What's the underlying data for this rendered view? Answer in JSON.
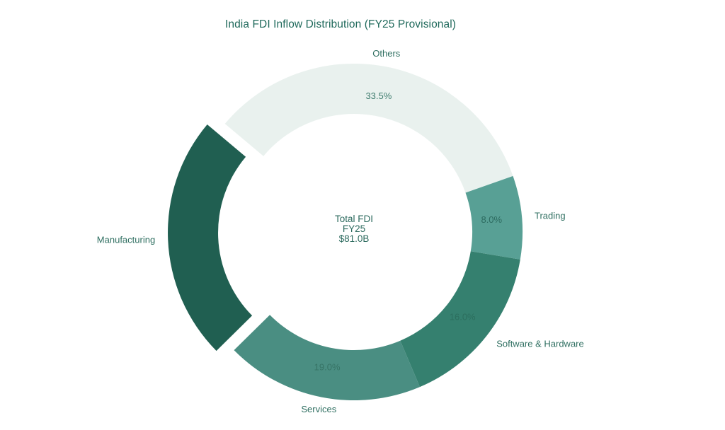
{
  "title": "India FDI Inflow Distribution (FY25 Provisional)",
  "center_label": {
    "line1": "Total FDI",
    "line2": "FY25",
    "line3": "$81.0B"
  },
  "colors": {
    "background": "#ffffff",
    "title_text": "#1f695b",
    "label_text": "#2f6f61",
    "center_text": "#2c6a5e"
  },
  "chart_data": {
    "type": "pie",
    "subtype": "donut",
    "title": "India FDI Inflow Distribution (FY25 Provisional)",
    "donut_hole_ratio": 0.7,
    "rotation_deg": -50,
    "direction": "clockwise",
    "legend_position": "none",
    "center_text_lines": [
      "Total FDI",
      "FY25",
      "$81.0B"
    ],
    "slices": [
      {
        "label": "Others",
        "pct": 33.5,
        "pct_label": "33.5%",
        "color": "#e9f1ee",
        "pct_text_color": "#3f7c6e",
        "pulled": false
      },
      {
        "label": "Trading",
        "pct": 8.0,
        "pct_label": "8.0%",
        "color": "#58a095",
        "pct_text_color": "#2d6b60",
        "pulled": false
      },
      {
        "label": "Software & Hardware",
        "pct": 16.0,
        "pct_label": "16.0%",
        "color": "#35806f",
        "pct_text_color": "#2c6e5e",
        "pulled": false
      },
      {
        "label": "Services",
        "pct": 19.0,
        "pct_label": "19.0%",
        "color": "#4a8e82",
        "pct_text_color": "#377466",
        "pulled": false
      },
      {
        "label": "Manufacturing",
        "pct": 23.5,
        "pct_label": "",
        "color": "#205f51",
        "pct_text_color": "",
        "pulled": true
      }
    ]
  }
}
